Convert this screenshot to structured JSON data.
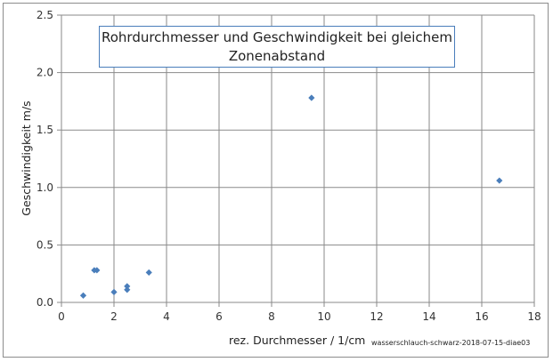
{
  "chart_data": {
    "type": "scatter",
    "title_lines": [
      "Rohrdurchmesser und Geschwindigkeit bei gleichem",
      "Zonenabstand"
    ],
    "xlabel": "rez. Durchmesser / 1/cm",
    "ylabel": "Geschwindigkeit m/s",
    "xlim": [
      0,
      18
    ],
    "ylim": [
      0,
      2.5
    ],
    "x_ticks": [
      "0",
      "2",
      "4",
      "6",
      "8",
      "10",
      "12",
      "14",
      "16",
      "18"
    ],
    "y_ticks": [
      "0.0",
      "0.5",
      "1.0",
      "1.5",
      "2.0",
      "2.5"
    ],
    "grid": true,
    "marker_color": "#4a7ebb",
    "marker": "diamond",
    "points": [
      {
        "x": 0.83,
        "y": 0.06
      },
      {
        "x": 1.25,
        "y": 0.28
      },
      {
        "x": 1.35,
        "y": 0.28
      },
      {
        "x": 2.0,
        "y": 0.09
      },
      {
        "x": 2.5,
        "y": 0.11
      },
      {
        "x": 2.5,
        "y": 0.14
      },
      {
        "x": 3.33,
        "y": 0.26
      },
      {
        "x": 9.52,
        "y": 1.78
      },
      {
        "x": 16.67,
        "y": 1.06
      }
    ]
  },
  "source_note": "wasserschlauch-schwarz-2018-07-15-diae03"
}
